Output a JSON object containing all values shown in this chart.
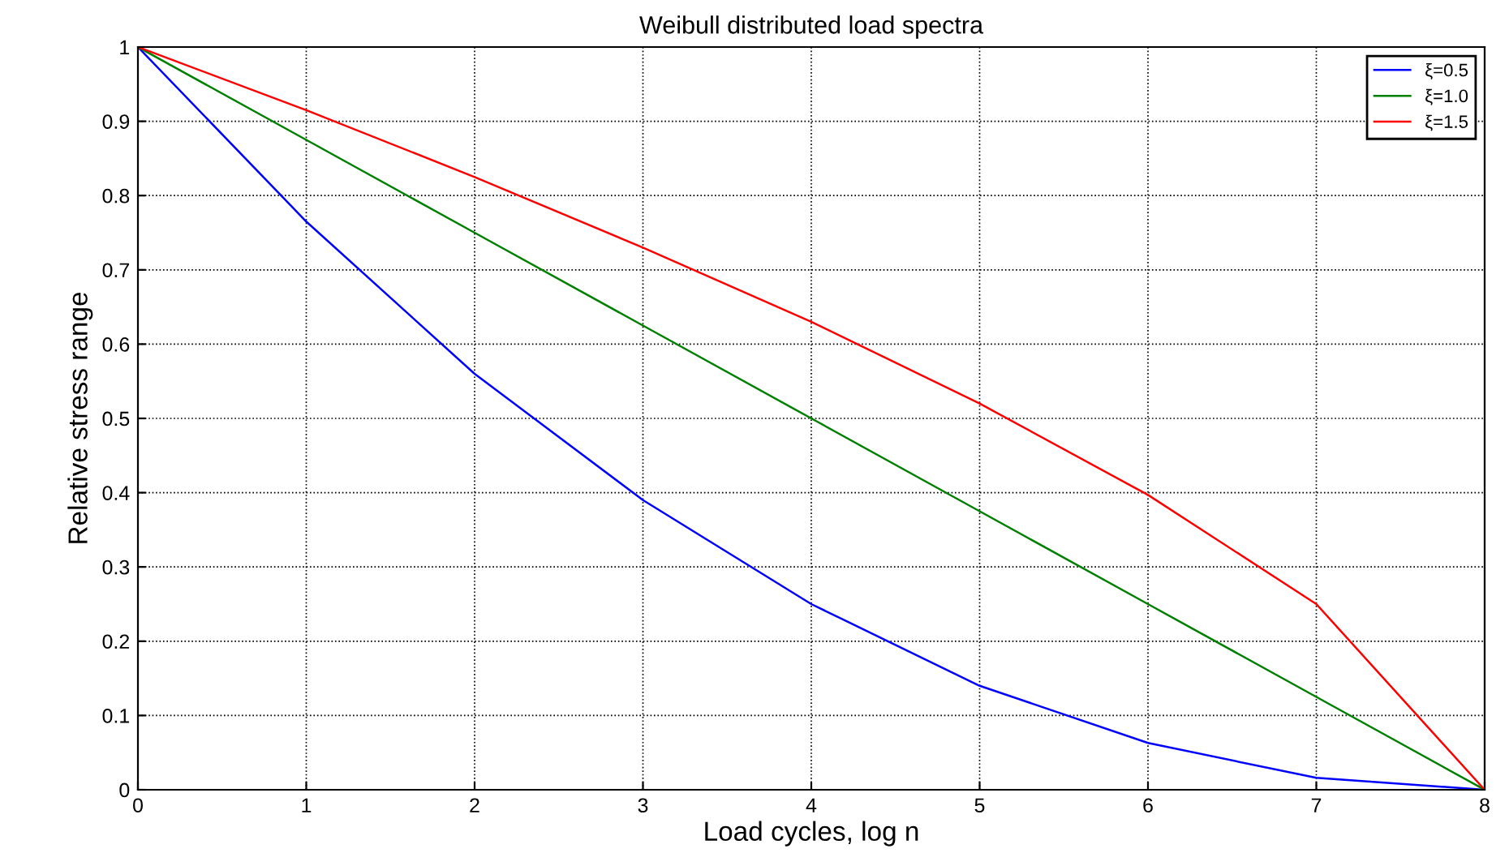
{
  "chart_data": {
    "type": "line",
    "title": "Weibull distributed load spectra",
    "xlabel": "Load cycles, log n",
    "ylabel": "Relative stress range",
    "x": [
      0,
      1,
      2,
      3,
      4,
      5,
      6,
      7,
      8
    ],
    "series": [
      {
        "name": "ξ=0.5",
        "color": "#0000ff",
        "values": [
          1,
          0.765,
          0.56,
          0.39,
          0.25,
          0.14,
          0.063,
          0.016,
          0
        ]
      },
      {
        "name": "ξ=1.0",
        "color": "#008000",
        "values": [
          1,
          0.875,
          0.75,
          0.625,
          0.5,
          0.375,
          0.25,
          0.125,
          0
        ]
      },
      {
        "name": "ξ=1.5",
        "color": "#ff0000",
        "values": [
          1,
          0.915,
          0.825,
          0.73,
          0.63,
          0.52,
          0.397,
          0.25,
          0
        ]
      }
    ],
    "xlim": [
      0,
      8
    ],
    "xticks": [
      0,
      1,
      2,
      3,
      4,
      5,
      6,
      7,
      8
    ],
    "ylim": [
      0,
      1
    ],
    "yticks": [
      0,
      0.1,
      0.2,
      0.3,
      0.4,
      0.5,
      0.6,
      0.7,
      0.8,
      0.9,
      1
    ],
    "grid": true,
    "legend": "top right",
    "marker": "none",
    "line_style": "solid"
  }
}
